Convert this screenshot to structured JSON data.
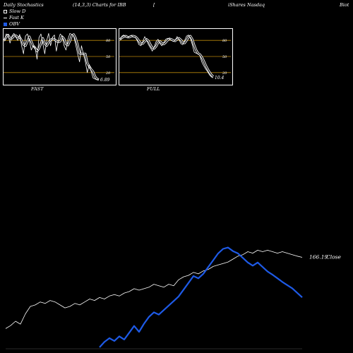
{
  "header": {
    "title": "Daily Stochastics",
    "params": "(14,3,3) Charts for IBB",
    "bracket": "[",
    "company": "iShares Nasdaq",
    "company_tail": "Biot"
  },
  "legend": [
    {
      "label": "Slow  D",
      "swatch": "outline"
    },
    {
      "label": "Fast K",
      "swatch": "dash"
    },
    {
      "label": "OBV",
      "swatch": "fill",
      "color": "#1e5ae6"
    }
  ],
  "chart_data": [
    {
      "type": "line",
      "name": "fast-stochastic",
      "label": "FAST",
      "ylim": [
        0,
        100
      ],
      "levels": [
        80,
        50,
        20
      ],
      "level_labels": [
        "80",
        "50",
        "20"
      ],
      "last_value_label": "6.89",
      "x": [
        0,
        1,
        2,
        3,
        4,
        5,
        6,
        7,
        8,
        9,
        10,
        11,
        12,
        13,
        14,
        15,
        16,
        17,
        18,
        19,
        20,
        21,
        22,
        23,
        24,
        25,
        26,
        27,
        28,
        29,
        30,
        31,
        32,
        33,
        34,
        35,
        36,
        37,
        38,
        39,
        40,
        41,
        42,
        43,
        44,
        45,
        46,
        47,
        48,
        49
      ],
      "series": [
        {
          "name": "Fast K",
          "values": [
            78,
            92,
            90,
            75,
            88,
            93,
            86,
            80,
            91,
            70,
            55,
            88,
            92,
            80,
            62,
            70,
            66,
            45,
            85,
            92,
            74,
            55,
            80,
            93,
            70,
            86,
            90,
            60,
            80,
            92,
            88,
            70,
            62,
            82,
            93,
            91,
            88,
            72,
            55,
            40,
            70,
            55,
            40,
            20,
            35,
            22,
            10,
            8,
            7,
            6.89
          ]
        },
        {
          "name": "Slow D",
          "values": [
            80,
            86,
            90,
            84,
            84,
            88,
            89,
            86,
            86,
            80,
            72,
            70,
            78,
            87,
            78,
            70,
            66,
            60,
            65,
            74,
            84,
            74,
            70,
            76,
            81,
            83,
            82,
            79,
            77,
            78,
            87,
            83,
            73,
            71,
            79,
            89,
            91,
            84,
            72,
            56,
            55,
            55,
            55,
            38,
            32,
            26,
            22,
            13,
            8,
            7.3
          ]
        }
      ]
    },
    {
      "type": "line",
      "name": "full-stochastic",
      "label": "FULL",
      "ylim": [
        0,
        100
      ],
      "levels": [
        80,
        50,
        20
      ],
      "level_labels": [
        "80",
        "50",
        "20"
      ],
      "last_value_label": "10.4",
      "x": [
        0,
        1,
        2,
        3,
        4,
        5,
        6,
        7,
        8,
        9,
        10,
        11,
        12,
        13,
        14,
        15,
        16,
        17,
        18,
        19,
        20,
        21,
        22,
        23,
        24,
        25,
        26,
        27,
        28,
        29,
        30,
        31,
        32,
        33,
        34,
        35,
        36,
        37,
        38,
        39,
        40,
        41,
        42,
        43,
        44,
        45,
        46,
        47,
        48,
        49
      ],
      "series": [
        {
          "name": "Fast K",
          "values": [
            80,
            88,
            90,
            86,
            85,
            88,
            89,
            86,
            86,
            80,
            72,
            70,
            78,
            87,
            80,
            72,
            66,
            60,
            68,
            78,
            82,
            74,
            70,
            76,
            82,
            84,
            83,
            80,
            78,
            80,
            87,
            82,
            74,
            72,
            80,
            88,
            90,
            84,
            72,
            58,
            56,
            55,
            52,
            40,
            33,
            27,
            22,
            16,
            12,
            10.4
          ]
        },
        {
          "name": "Slow D",
          "values": [
            82,
            85,
            87,
            88,
            86,
            86,
            88,
            88,
            87,
            84,
            79,
            74,
            74,
            78,
            82,
            79,
            72,
            66,
            65,
            69,
            76,
            78,
            75,
            73,
            76,
            80,
            83,
            82,
            80,
            79,
            82,
            84,
            81,
            76,
            75,
            80,
            86,
            88,
            82,
            71,
            62,
            56,
            54,
            49,
            42,
            34,
            27,
            21,
            16,
            12.6
          ]
        }
      ]
    },
    {
      "type": "line",
      "name": "price-obv",
      "last_price_label": "166.19",
      "close_label": "Close",
      "x": [
        0,
        1,
        2,
        3,
        4,
        5,
        6,
        7,
        8,
        9,
        10,
        11,
        12,
        13,
        14,
        15,
        16,
        17,
        18,
        19,
        20,
        21,
        22,
        23,
        24,
        25,
        26,
        27,
        28,
        29,
        30,
        31,
        32,
        33,
        34,
        35,
        36,
        37,
        38,
        39,
        40,
        41,
        42,
        43,
        44,
        45,
        46,
        47,
        48,
        49,
        50,
        51,
        52,
        53,
        54,
        55,
        56,
        57,
        58,
        59,
        60
      ],
      "series": [
        {
          "name": "Close",
          "values": [
            118,
            120,
            123,
            121,
            128,
            133,
            134,
            136,
            135,
            137,
            136,
            134,
            132,
            133,
            135,
            134,
            136,
            138,
            137,
            139,
            138,
            140,
            141,
            140,
            142,
            143,
            145,
            144,
            145,
            146,
            148,
            147,
            146,
            148,
            147,
            151,
            153,
            154,
            156,
            155,
            157,
            158,
            160,
            161,
            162,
            163,
            165,
            167,
            168,
            170,
            169,
            171,
            170,
            171,
            170,
            169,
            170,
            169,
            168,
            167,
            166.19
          ]
        },
        {
          "name": "OBV",
          "values": [
            null,
            null,
            null,
            null,
            null,
            null,
            null,
            null,
            null,
            null,
            null,
            null,
            null,
            null,
            null,
            null,
            null,
            null,
            null,
            8,
            20,
            28,
            22,
            32,
            25,
            40,
            55,
            42,
            60,
            75,
            85,
            80,
            90,
            100,
            110,
            120,
            135,
            150,
            165,
            160,
            170,
            185,
            200,
            215,
            225,
            228,
            220,
            215,
            205,
            195,
            188,
            195,
            185,
            175,
            168,
            160,
            152,
            145,
            138,
            128,
            118
          ]
        }
      ]
    }
  ]
}
